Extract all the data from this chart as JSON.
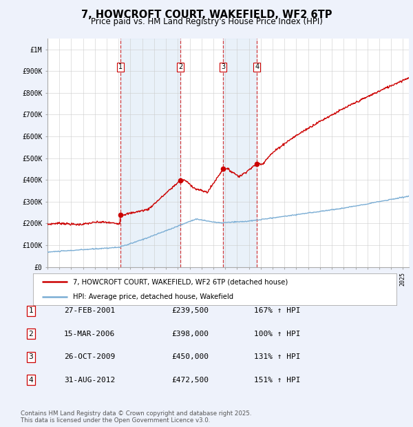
{
  "title": "7, HOWCROFT COURT, WAKEFIELD, WF2 6TP",
  "subtitle": "Price paid vs. HM Land Registry's House Price Index (HPI)",
  "ylim": [
    0,
    1050000
  ],
  "yticks": [
    0,
    100000,
    200000,
    300000,
    400000,
    500000,
    600000,
    700000,
    800000,
    900000,
    1000000
  ],
  "ytick_labels": [
    "£0",
    "£100K",
    "£200K",
    "£300K",
    "£400K",
    "£500K",
    "£600K",
    "£700K",
    "£800K",
    "£900K",
    "£1M"
  ],
  "background_color": "#eef2fb",
  "plot_bg_color": "#ffffff",
  "red_line_color": "#cc0000",
  "blue_line_color": "#7aadd4",
  "shade_color": "#d8e6f5",
  "vline_color": "#cc0000",
  "sales": [
    {
      "num": 1,
      "date": "27-FEB-2001",
      "price": 239500,
      "hpi_pct": "167%",
      "x_year": 2001.15
    },
    {
      "num": 2,
      "date": "15-MAR-2006",
      "price": 398000,
      "hpi_pct": "100%",
      "x_year": 2006.21
    },
    {
      "num": 3,
      "date": "26-OCT-2009",
      "price": 450000,
      "hpi_pct": "131%",
      "x_year": 2009.82
    },
    {
      "num": 4,
      "date": "31-AUG-2012",
      "price": 472500,
      "hpi_pct": "151%",
      "x_year": 2012.67
    }
  ],
  "legend_label_red": "7, HOWCROFT COURT, WAKEFIELD, WF2 6TP (detached house)",
  "legend_label_blue": "HPI: Average price, detached house, Wakefield",
  "footer_text": "Contains HM Land Registry data © Crown copyright and database right 2025.\nThis data is licensed under the Open Government Licence v3.0.",
  "xmin": 1995.0,
  "xmax": 2025.5,
  "table_rows": [
    [
      "1",
      "27-FEB-2001",
      "£239,500",
      "167% ↑ HPI"
    ],
    [
      "2",
      "15-MAR-2006",
      "£398,000",
      "100% ↑ HPI"
    ],
    [
      "3",
      "26-OCT-2009",
      "£450,000",
      "131% ↑ HPI"
    ],
    [
      "4",
      "31-AUG-2012",
      "£472,500",
      "151% ↑ HPI"
    ]
  ]
}
